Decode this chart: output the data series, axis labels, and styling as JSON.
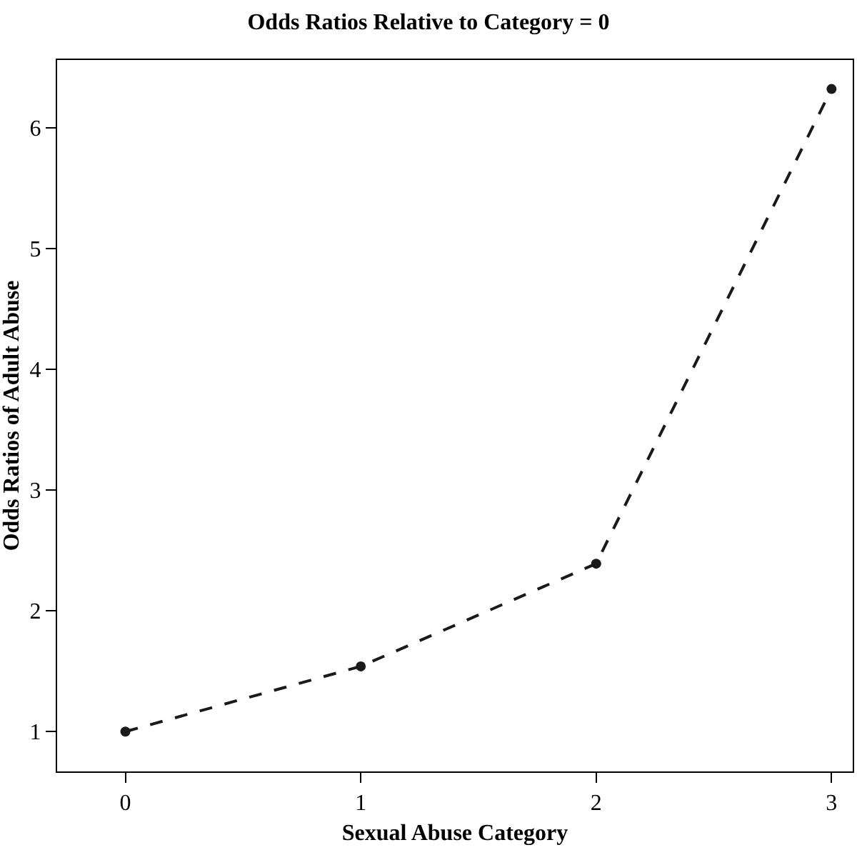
{
  "chart_data": {
    "type": "line",
    "title": "Odds Ratios Relative to Category = 0",
    "xlabel": "Sexual Abuse Category",
    "ylabel": "Odds Ratios of Adult Abuse",
    "x": [
      0,
      1,
      2,
      3
    ],
    "series": [
      {
        "color": "#1a1a1a",
        "values": [
          1.0,
          1.54,
          2.39,
          6.32
        ]
      }
    ],
    "xlim": [
      -0.29,
      3.09
    ],
    "xticks": [
      0,
      1,
      2,
      3
    ],
    "ylim": [
      0.67,
      6.56
    ],
    "yticks": [
      1,
      2,
      3,
      4,
      5,
      6
    ],
    "grid": false,
    "marker": "circle",
    "line_style": "dashed"
  }
}
